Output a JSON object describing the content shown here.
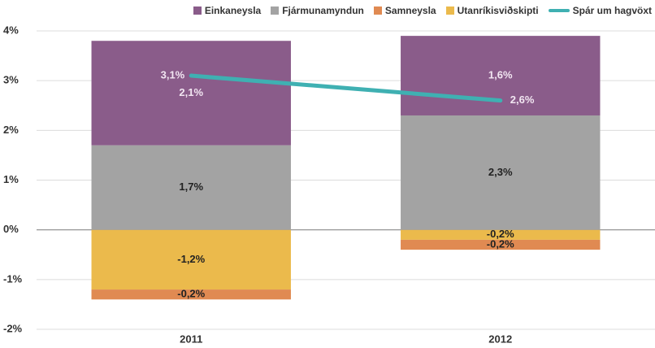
{
  "chart_data": {
    "type": "bar",
    "stacked": true,
    "categories": [
      "2011",
      "2012"
    ],
    "ylim": [
      -2,
      4
    ],
    "yticks": [
      {
        "value": -2,
        "label": "-2%"
      },
      {
        "value": -1,
        "label": "-1%"
      },
      {
        "value": 0,
        "label": "0%"
      },
      {
        "value": 1,
        "label": "1%"
      },
      {
        "value": 2,
        "label": "2%"
      },
      {
        "value": 3,
        "label": "3%"
      },
      {
        "value": 4,
        "label": "4%"
      }
    ],
    "grid": true,
    "legend": "top-right",
    "series": [
      {
        "name": "Einkaneysla",
        "color": "#8a5c8a",
        "label_color": "#f2e6f2",
        "values": [
          2.1,
          1.6
        ],
        "value_labels": [
          "2,1%",
          "1,6%"
        ]
      },
      {
        "name": "Fjármunamyndun",
        "color": "#a3a3a3",
        "label_color": "#222222",
        "values": [
          1.7,
          2.3
        ],
        "value_labels": [
          "1,7%",
          "2,3%"
        ]
      },
      {
        "name": "Samneysla",
        "color": "#e08a52",
        "label_color": "#222222",
        "values": [
          -0.2,
          -0.2
        ],
        "value_labels": [
          "-0,2%",
          "-0,2%"
        ]
      },
      {
        "name": "Utanríkisviðskipti",
        "color": "#ebba4c",
        "label_color": "#222222",
        "values": [
          -1.2,
          -0.2
        ],
        "value_labels": [
          "-1,2%",
          "-0,2%"
        ]
      },
      {
        "name": "Spár um hagvöxt",
        "type": "line",
        "color": "#3fb0b2",
        "label_color": "#f2e6f2",
        "values": [
          3.1,
          2.6
        ],
        "value_labels": [
          "3,1%",
          "2,6%"
        ]
      }
    ]
  }
}
